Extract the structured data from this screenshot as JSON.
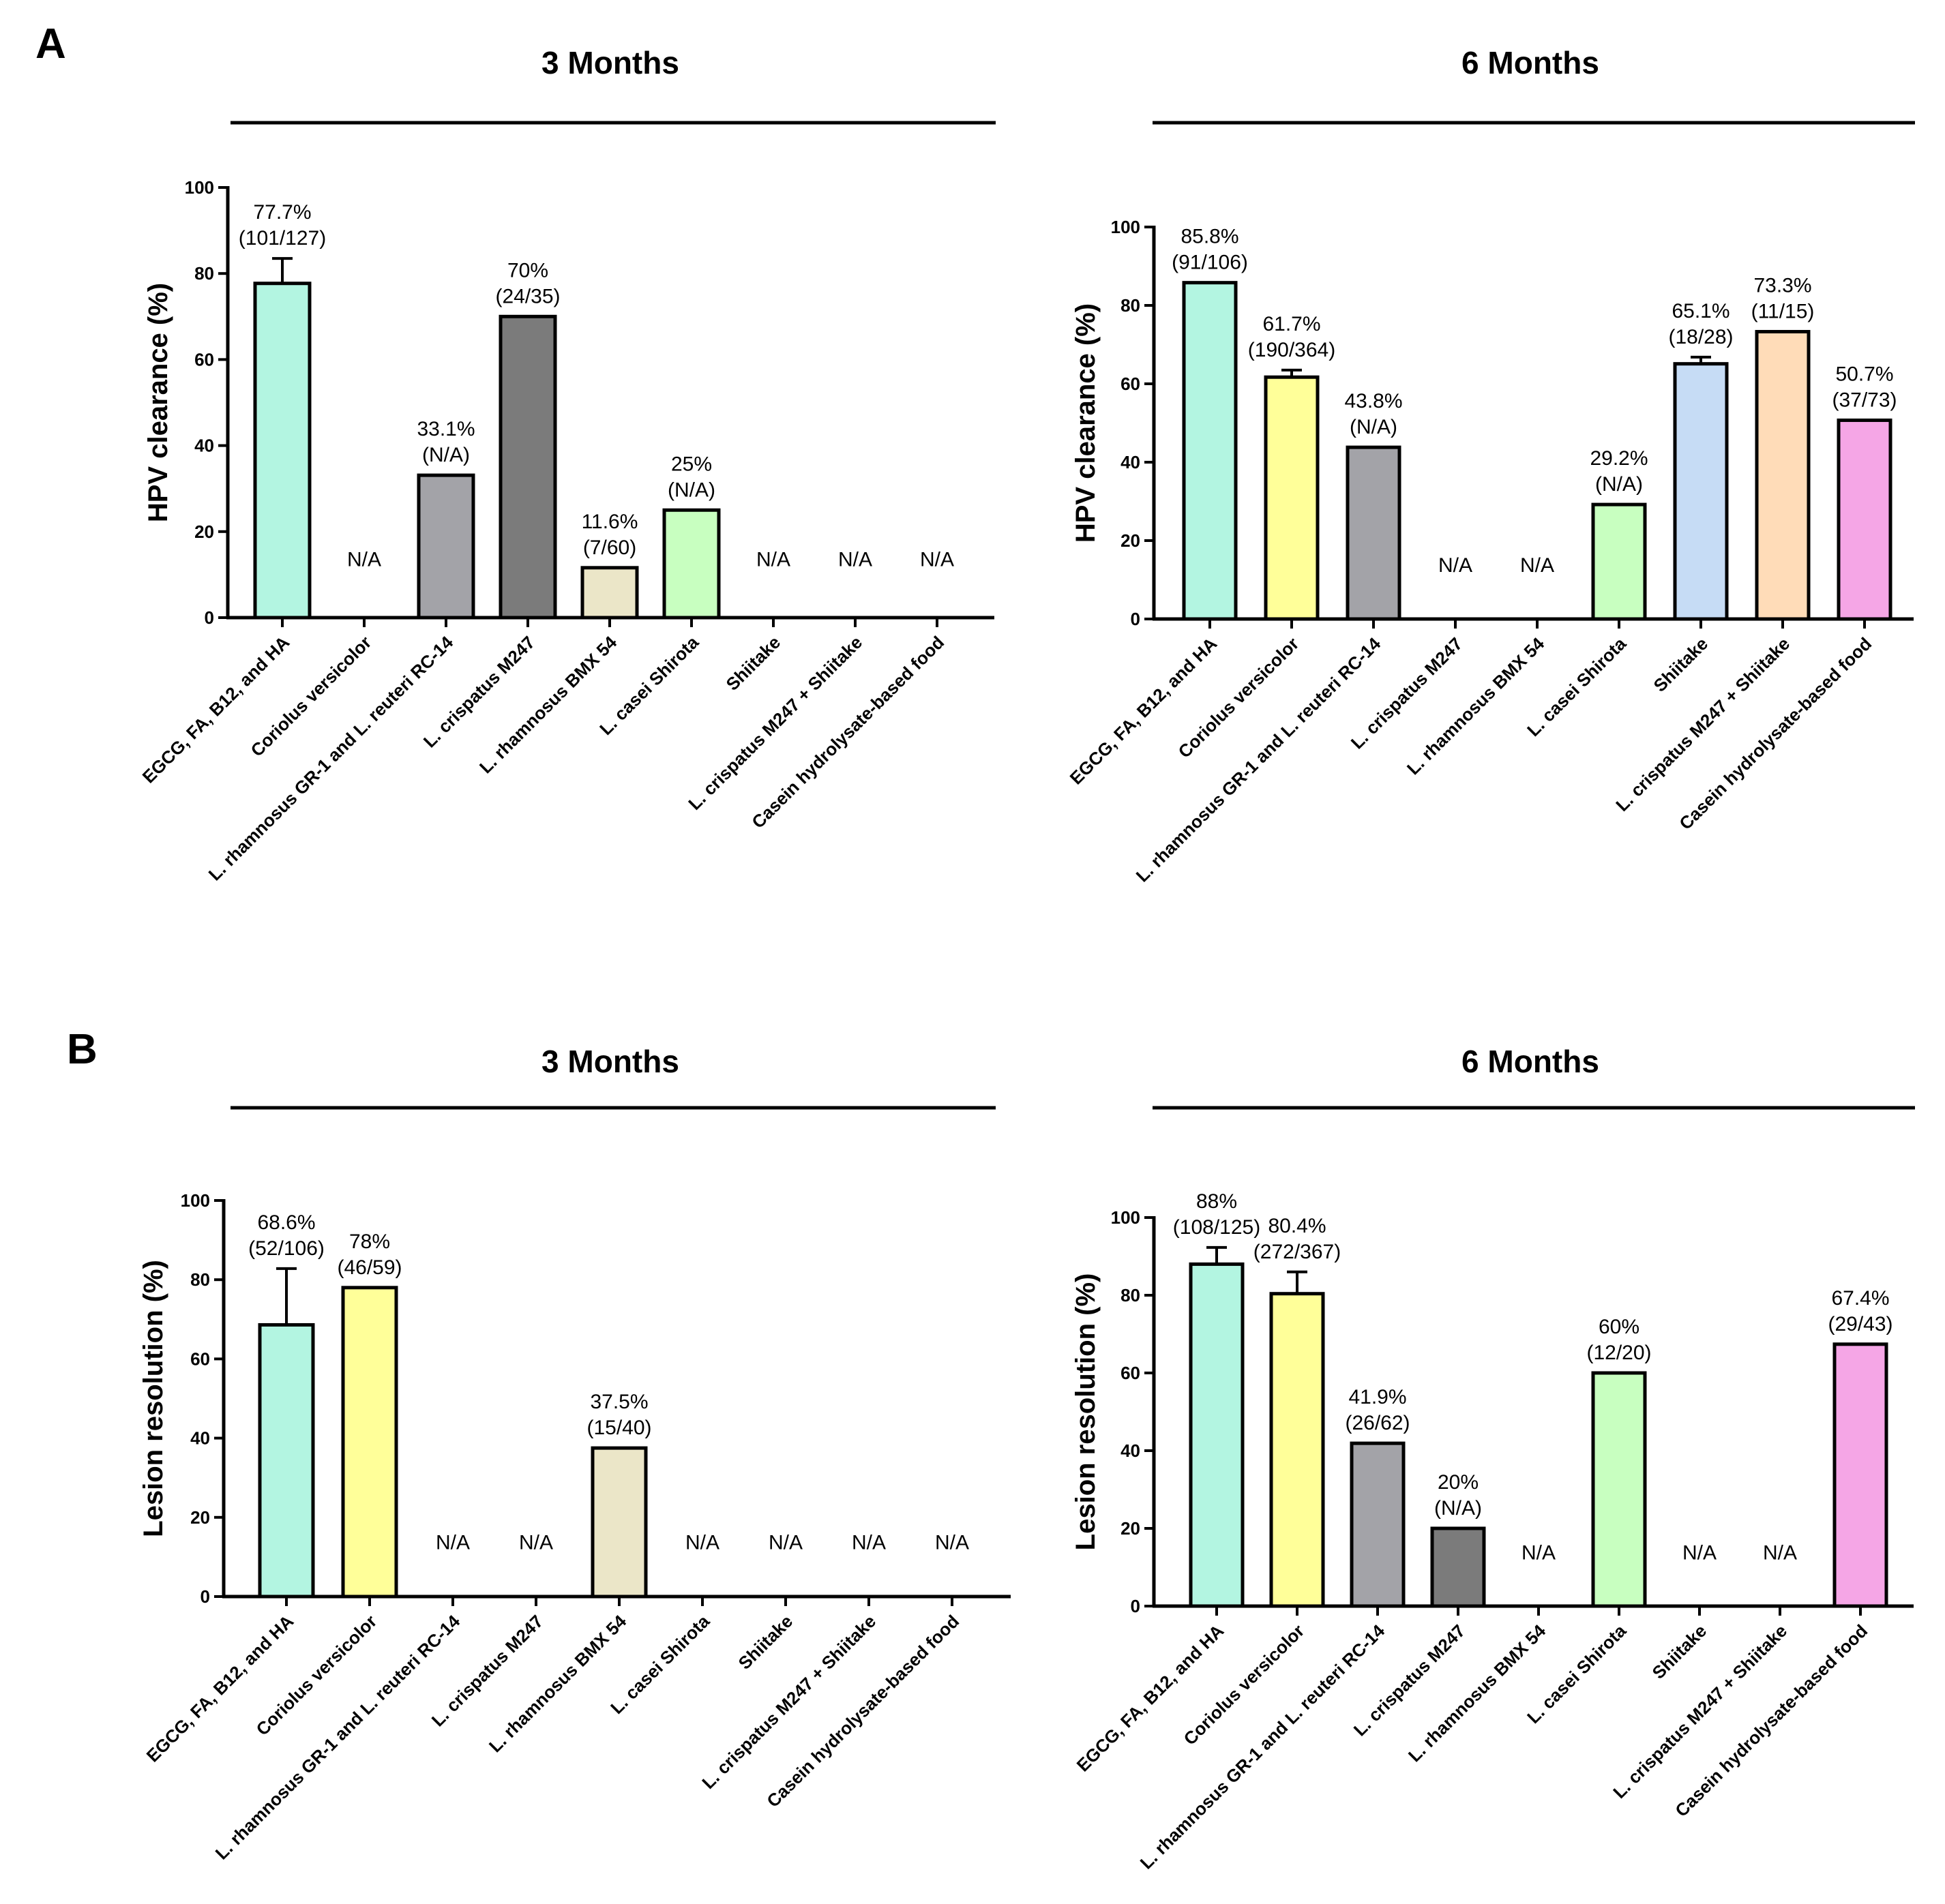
{
  "chart_data": [
    {
      "type": "bar",
      "panel": "A",
      "title": "3 Months",
      "ylabel": "HPV clearance (%)",
      "ylim": [
        0,
        100
      ],
      "yticks": [
        "0",
        "20",
        "40",
        "60",
        "80",
        "100"
      ],
      "categories": [
        "EGCG, FA, B12, and HA",
        "Coriolus versicolor",
        "L. rhamnosus GR-1 and L. reuteri RC-14",
        "L. crispatus M247",
        "L. rhamnosus BMX 54",
        "L. casei Shirota",
        "Shiitake",
        "L. crispatus M247 + Shiitake",
        "Casein hydrolysate-based food"
      ],
      "values": [
        77.7,
        null,
        33.1,
        70,
        11.6,
        25,
        null,
        null,
        null
      ],
      "error_upper": [
        83.5,
        null,
        null,
        null,
        null,
        null,
        null,
        null,
        null
      ],
      "bar_colors": [
        "#b3f5e1",
        null,
        "#a3a3a8",
        "#7b7b7b",
        "#ebe6c8",
        "#c8ffc0",
        null,
        null,
        null
      ],
      "labels": [
        [
          "77.7%",
          "(101/127)"
        ],
        [
          "N/A"
        ],
        [
          "33.1%",
          "(N/A)"
        ],
        [
          "70%",
          "(24/35)"
        ],
        [
          "11.6%",
          "(7/60)"
        ],
        [
          "25%",
          "(N/A)"
        ],
        [
          "N/A"
        ],
        [
          "N/A"
        ],
        [
          "N/A"
        ]
      ]
    },
    {
      "type": "bar",
      "panel": "",
      "title": "6 Months",
      "ylabel": "HPV clearance (%)",
      "ylim": [
        0,
        100
      ],
      "yticks": [
        "0",
        "20",
        "40",
        "60",
        "80",
        "100"
      ],
      "categories": [
        "EGCG, FA, B12, and HA",
        "Coriolus versicolor",
        "L. rhamnosus GR-1 and L. reuteri RC-14",
        "L. crispatus M247",
        "L. rhamnosus BMX 54",
        "L. casei Shirota",
        "Shiitake",
        "L. crispatus M247 + Shiitake",
        "Casein hydrolysate-based food"
      ],
      "values": [
        85.8,
        61.7,
        43.8,
        null,
        null,
        29.2,
        65.1,
        73.3,
        50.7
      ],
      "error_upper": [
        null,
        63.5,
        null,
        null,
        null,
        null,
        66.8,
        null,
        null
      ],
      "bar_colors": [
        "#b3f5e1",
        "#ffff99",
        "#a3a3a8",
        null,
        null,
        "#c8ffc0",
        "#c6dcf5",
        "#ffdcb8",
        "#f5a6e6"
      ],
      "labels": [
        [
          "85.8%",
          "(91/106)"
        ],
        [
          "61.7%",
          "(190/364)"
        ],
        [
          "43.8%",
          "(N/A)"
        ],
        [
          "N/A"
        ],
        [
          "N/A"
        ],
        [
          "29.2%",
          "(N/A)"
        ],
        [
          "65.1%",
          "(18/28)"
        ],
        [
          "73.3%",
          "(11/15)"
        ],
        [
          "50.7%",
          "(37/73)"
        ]
      ]
    },
    {
      "type": "bar",
      "panel": "B",
      "title": "3 Months",
      "ylabel": "Lesion resolution (%)",
      "ylim": [
        0,
        100
      ],
      "yticks": [
        "0",
        "20",
        "40",
        "60",
        "80",
        "100"
      ],
      "categories": [
        "EGCG, FA, B12, and HA",
        "Coriolus versicolor",
        "L. rhamnosus GR-1 and L. reuteri RC-14",
        "L. crispatus M247",
        "L. rhamnosus BMX 54",
        "L. casei Shirota",
        "Shiitake",
        "L. crispatus M247 + Shiitake",
        "Casein hydrolysate-based food"
      ],
      "values": [
        68.6,
        78,
        null,
        null,
        37.5,
        null,
        null,
        null,
        null
      ],
      "error_upper": [
        82.8,
        null,
        null,
        null,
        null,
        null,
        null,
        null,
        null
      ],
      "bar_colors": [
        "#b3f5e1",
        "#ffff99",
        null,
        null,
        "#ebe6c8",
        null,
        null,
        null,
        null
      ],
      "labels": [
        [
          "68.6%",
          "(52/106)"
        ],
        [
          "78%",
          "(46/59)"
        ],
        [
          "N/A"
        ],
        [
          "N/A"
        ],
        [
          "37.5%",
          "(15/40)"
        ],
        [
          "N/A"
        ],
        [
          "N/A"
        ],
        [
          "N/A"
        ],
        [
          "N/A"
        ]
      ]
    },
    {
      "type": "bar",
      "panel": "",
      "title": "6 Months",
      "ylabel": "Lesion resolution (%)",
      "ylim": [
        0,
        100
      ],
      "yticks": [
        "0",
        "20",
        "40",
        "60",
        "80",
        "100"
      ],
      "categories": [
        "EGCG, FA, B12, and HA",
        "Coriolus versicolor",
        "L. rhamnosus GR-1 and L. reuteri RC-14",
        "L. crispatus M247",
        "L. rhamnosus BMX 54",
        "L. casei Shirota",
        "Shiitake",
        "L. crispatus M247 + Shiitake",
        "Casein hydrolysate-based food"
      ],
      "values": [
        88,
        80.4,
        41.9,
        20,
        null,
        60,
        null,
        null,
        67.4
      ],
      "error_upper": [
        92.3,
        86,
        null,
        null,
        null,
        null,
        null,
        null,
        null
      ],
      "bar_colors": [
        "#b3f5e1",
        "#ffff99",
        "#a3a3a8",
        "#7b7b7b",
        null,
        "#c8ffc0",
        null,
        null,
        "#f5a6e6"
      ],
      "labels": [
        [
          "88%",
          "(108/125)"
        ],
        [
          "80.4%",
          "(272/367)"
        ],
        [
          "41.9%",
          "(26/62)"
        ],
        [
          "20%",
          "(N/A)"
        ],
        [
          "N/A"
        ],
        [
          "60%",
          "(12/20)"
        ],
        [
          "N/A"
        ],
        [
          "N/A"
        ],
        [
          "67.4%",
          "(29/43)"
        ]
      ]
    }
  ]
}
